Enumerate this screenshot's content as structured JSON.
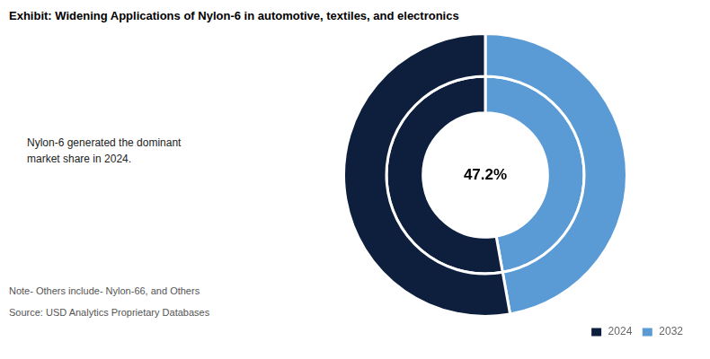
{
  "chart_data": {
    "type": "doughnut",
    "title": "Exhibit: Widening Applications of Nylon-6 in automotive, textiles, and electronics",
    "categories": [
      "2032",
      "2024"
    ],
    "series": [
      {
        "values": [
          47.2,
          52.8
        ]
      },
      {
        "values": [
          47.2,
          52.8
        ]
      }
    ],
    "colors": [
      "#5B9BD5",
      "#0D1F3C"
    ],
    "legend": "lower right",
    "annotations": [
      "47.2%",
      "Nylon-6  generated the dominant\nmarket share in 2024.",
      "Note- Others include- Nylon-66, and Others",
      "Source: USD Analytics Proprietary Databases"
    ]
  }
}
